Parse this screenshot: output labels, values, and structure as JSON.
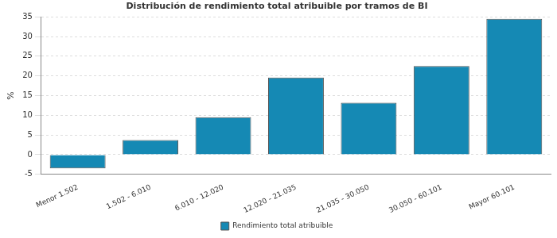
{
  "chart_data": {
    "type": "bar",
    "title": "Distribución de rendimiento total atribuible por tramos de BI",
    "y_label": "%",
    "categories": [
      "Menor 1.502",
      "1.502 - 6.010",
      "6.010 - 12.020",
      "12.020 - 21.035",
      "21.035 - 30.050",
      "30.050 - 60.101",
      "Mayor 60.101"
    ],
    "series": [
      {
        "name": "Rendimiento total atribuible",
        "color": "#1589b4",
        "values": [
          -3.5,
          3.7,
          9.5,
          19.6,
          13.2,
          22.5,
          34.5
        ]
      }
    ],
    "ylim": [
      -5,
      35
    ],
    "yticks": [
      -5,
      0,
      5,
      10,
      15,
      20,
      25,
      30,
      35
    ],
    "grid": true,
    "legend": "bottom"
  }
}
